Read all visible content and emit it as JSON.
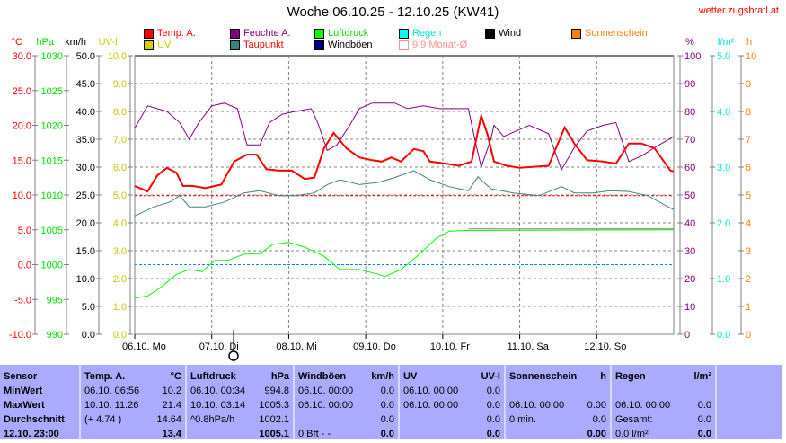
{
  "title": "Woche 06.10.25 - 12.10.25 (KW41)",
  "site": "wetter.zugsbratl.at",
  "legend": [
    {
      "label": "Temp. A.",
      "color": "#ff0000",
      "text_color": "#ff0000"
    },
    {
      "label": "Feuchte A.",
      "color": "#800080",
      "text_color": "#800080"
    },
    {
      "label": "Luftdruck",
      "color": "#00ff00",
      "text_color": "#00dd00"
    },
    {
      "label": "Regen",
      "color": "#00ffff",
      "text_color": "#00e0e0"
    },
    {
      "label": "Wind",
      "color": "#000000",
      "text_color": "#000000"
    },
    {
      "label": "Sonnenschein",
      "color": "#ff8000",
      "text_color": "#ff8000"
    },
    {
      "label": "UV",
      "color": "#d0d000",
      "text_color": "#c8c800"
    },
    {
      "label": "Taupunkt",
      "color": "#408080",
      "text_color": "#ff0000"
    },
    {
      "label": "Windböen",
      "color": "#000080",
      "text_color": "#000000"
    },
    {
      "label": "9.9 Monat-Ø",
      "color": "#ffffff",
      "text_color": "#ff9090"
    }
  ],
  "chart_data": {
    "type": "line",
    "title": "Woche 06.10.25 - 12.10.25 (KW41)",
    "x_unit": "hours since 06.10. 00:00",
    "xlim": [
      0,
      168
    ],
    "x_ticks": [
      "06.10. Mo",
      "07.10. Di",
      "08.10. Mi",
      "09.10. Do",
      "10.10. Fr",
      "11.10. Sa",
      "12.10. So"
    ],
    "axes": {
      "left": [
        {
          "label": "°C",
          "color": "#ff0000",
          "ticks": [
            "30.0",
            "25.0",
            "20.0",
            "15.0",
            "10.0",
            "5.0",
            "0.0",
            "-5.0",
            "-10.0"
          ]
        },
        {
          "label": "hPa",
          "color": "#00dd00",
          "ticks": [
            "1030",
            "1025",
            "1020",
            "1015",
            "1010",
            "1005",
            "1000",
            "995",
            "990"
          ]
        },
        {
          "label": "km/h",
          "color": "#000000",
          "ticks": [
            "50.0",
            "45.0",
            "40.0",
            "35.0",
            "30.0",
            "25.0",
            "20.0",
            "15.0",
            "10.0",
            "5.0",
            "0.0"
          ]
        },
        {
          "label": "UV-I",
          "color": "#c8c800",
          "ticks": [
            "10.0",
            "9.0",
            "8.0",
            "7.0",
            "6.0",
            "5.0",
            "4.0",
            "3.0",
            "2.0",
            "1.0",
            "0.0"
          ]
        }
      ],
      "right": [
        {
          "label": "%",
          "color": "#800080",
          "ticks": [
            "100",
            "90",
            "80",
            "70",
            "60",
            "50",
            "40",
            "30",
            "20",
            "10",
            "0"
          ]
        },
        {
          "label": "l/m²",
          "color": "#00e0e0",
          "ticks": [
            "5.0",
            "4.0",
            "3.0",
            "2.0",
            "1.0",
            "0.0"
          ]
        },
        {
          "label": "h",
          "color": "#ff8000",
          "ticks": [
            "10",
            "9",
            "8",
            "7",
            "6",
            "5",
            "4",
            "3",
            "2",
            "1",
            "0"
          ]
        }
      ]
    },
    "ylim_temp": [
      -10,
      30
    ],
    "ylim_hpa": [
      990,
      1030
    ],
    "ylim_pct": [
      0,
      100
    ],
    "series": [
      {
        "name": "Temp. A.",
        "axis": "temp",
        "color": "#ff0000",
        "width": 2,
        "points": [
          [
            0,
            11.3
          ],
          [
            4,
            10.5
          ],
          [
            7,
            12.8
          ],
          [
            10,
            13.9
          ],
          [
            13,
            13.2
          ],
          [
            15,
            11.3
          ],
          [
            18,
            11.3
          ],
          [
            22,
            11.0
          ],
          [
            27,
            11.5
          ],
          [
            31,
            14.8
          ],
          [
            35,
            15.8
          ],
          [
            38,
            15.8
          ],
          [
            41,
            13.7
          ],
          [
            45,
            13.5
          ],
          [
            49,
            13.5
          ],
          [
            53,
            12.3
          ],
          [
            56,
            12.5
          ],
          [
            59,
            16.7
          ],
          [
            62,
            18.9
          ],
          [
            66,
            16.7
          ],
          [
            70,
            15.4
          ],
          [
            74,
            15.0
          ],
          [
            77,
            14.8
          ],
          [
            80,
            15.4
          ],
          [
            83,
            14.8
          ],
          [
            87,
            16.6
          ],
          [
            90,
            16.3
          ],
          [
            92,
            14.8
          ],
          [
            97,
            14.5
          ],
          [
            101,
            14.2
          ],
          [
            105,
            14.8
          ],
          [
            108,
            21.4
          ],
          [
            110,
            18.6
          ],
          [
            112,
            14.8
          ],
          [
            116,
            14.2
          ],
          [
            120,
            13.9
          ],
          [
            129,
            14.2
          ],
          [
            134,
            19.7
          ],
          [
            137,
            17.4
          ],
          [
            141,
            15.0
          ],
          [
            146,
            14.8
          ],
          [
            150,
            14.5
          ],
          [
            154,
            17.4
          ],
          [
            158,
            17.4
          ],
          [
            162,
            16.7
          ],
          [
            167,
            13.5
          ],
          [
            168,
            13.4
          ]
        ]
      },
      {
        "name": "Feuchte A.",
        "axis": "pct",
        "color": "#800080",
        "width": 1,
        "points": [
          [
            0,
            74
          ],
          [
            4,
            82
          ],
          [
            7,
            81
          ],
          [
            10,
            80
          ],
          [
            14,
            76
          ],
          [
            17,
            70
          ],
          [
            20,
            76
          ],
          [
            24,
            82
          ],
          [
            28,
            83
          ],
          [
            32,
            81
          ],
          [
            35,
            68
          ],
          [
            39,
            68
          ],
          [
            42,
            76
          ],
          [
            46,
            79
          ],
          [
            50,
            80
          ],
          [
            55,
            81
          ],
          [
            57,
            76
          ],
          [
            60,
            66
          ],
          [
            63,
            68
          ],
          [
            67,
            75
          ],
          [
            70,
            81
          ],
          [
            74,
            83
          ],
          [
            81,
            83
          ],
          [
            85,
            81
          ],
          [
            90,
            82
          ],
          [
            95,
            81
          ],
          [
            104,
            81
          ],
          [
            106,
            70
          ],
          [
            108,
            60
          ],
          [
            111,
            70
          ],
          [
            112,
            75
          ],
          [
            115,
            71
          ],
          [
            119,
            73
          ],
          [
            123,
            75
          ],
          [
            129,
            72
          ],
          [
            133,
            59
          ],
          [
            137,
            67
          ],
          [
            141,
            73
          ],
          [
            146,
            75
          ],
          [
            150,
            76
          ],
          [
            154,
            62
          ],
          [
            158,
            64
          ],
          [
            162,
            67
          ],
          [
            168,
            71
          ]
        ]
      },
      {
        "name": "Taupunkt",
        "axis": "temp",
        "color": "#408080",
        "width": 1,
        "points": [
          [
            0,
            7.0
          ],
          [
            6,
            8.3
          ],
          [
            11,
            9.0
          ],
          [
            14,
            9.9
          ],
          [
            17,
            8.3
          ],
          [
            22,
            8.3
          ],
          [
            28,
            9.0
          ],
          [
            34,
            10.3
          ],
          [
            39,
            10.6
          ],
          [
            45,
            9.9
          ],
          [
            50,
            9.9
          ],
          [
            56,
            10.3
          ],
          [
            60,
            11.5
          ],
          [
            64,
            12.2
          ],
          [
            70,
            11.5
          ],
          [
            76,
            11.8
          ],
          [
            81,
            12.5
          ],
          [
            87,
            13.5
          ],
          [
            92,
            12.2
          ],
          [
            98,
            11.2
          ],
          [
            104,
            10.6
          ],
          [
            107,
            12.6
          ],
          [
            111,
            10.9
          ],
          [
            118,
            10.3
          ],
          [
            126,
            9.9
          ],
          [
            133,
            11.2
          ],
          [
            137,
            10.3
          ],
          [
            143,
            10.3
          ],
          [
            148,
            10.6
          ],
          [
            154,
            10.5
          ],
          [
            160,
            9.9
          ],
          [
            165,
            8.6
          ],
          [
            168,
            7.9
          ]
        ]
      },
      {
        "name": "Luftdruck",
        "axis": "hpa",
        "color": "#00ff00",
        "width": 1,
        "points": [
          [
            0,
            995.2
          ],
          [
            4,
            995.5
          ],
          [
            8,
            996.7
          ],
          [
            13,
            998.6
          ],
          [
            17,
            999.3
          ],
          [
            21,
            999.0
          ],
          [
            25,
            1000.6
          ],
          [
            29,
            1000.6
          ],
          [
            34,
            1001.5
          ],
          [
            39,
            1001.6
          ],
          [
            43,
            1002.9
          ],
          [
            48,
            1003.2
          ],
          [
            53,
            1002.5
          ],
          [
            59,
            1001.2
          ],
          [
            64,
            999.3
          ],
          [
            70,
            999.3
          ],
          [
            76,
            998.6
          ],
          [
            78,
            998.3
          ],
          [
            83,
            999.3
          ],
          [
            88,
            1001.2
          ],
          [
            94,
            1003.8
          ],
          [
            98,
            1004.8
          ],
          [
            104,
            1004.9
          ],
          [
            168,
            1005.0
          ]
        ]
      }
    ],
    "reference_lines": [
      {
        "name": "Monat-Ø Temp",
        "axis": "temp",
        "value": 9.9,
        "color": "#ff0000"
      },
      {
        "name": "Luftdruck ref",
        "axis": "hpa",
        "value": 1000,
        "color": "#0080ff"
      }
    ],
    "flat_line": {
      "name": "Luftdruck trend",
      "axis": "hpa",
      "value": 1005.0,
      "from": 104,
      "to": 168,
      "color": "#808080"
    }
  },
  "table": {
    "columns": [
      {
        "rows": [
          [
            "Sensor",
            ""
          ],
          [
            "MinWert",
            ""
          ],
          [
            "MaxWert",
            ""
          ],
          [
            "Durchschnitt",
            ""
          ],
          [
            "12.10. 23:00",
            ""
          ]
        ],
        "bold": true
      },
      {
        "rows": [
          [
            "Temp. A.",
            "°C"
          ],
          [
            "06.10.  06:56",
            "10.2"
          ],
          [
            "10.10.  11:26",
            "21.4"
          ],
          [
            "(+ 4.74 )",
            "14.64"
          ],
          [
            "",
            "13.4"
          ]
        ]
      },
      {
        "rows": [
          [
            "Luftdruck",
            "hPa"
          ],
          [
            "06.10.  00:34",
            "994.8"
          ],
          [
            "10.10.  03:14",
            "1005.3"
          ],
          [
            "^0.8hPa/h",
            "1002.1"
          ],
          [
            "",
            "1005.1"
          ]
        ]
      },
      {
        "rows": [
          [
            "Windböen",
            "km/h"
          ],
          [
            "06.10.  00:00",
            "0.0"
          ],
          [
            "06.10.  00:00",
            "0.0"
          ],
          [
            "",
            "0.0"
          ],
          [
            "0 Bft - -",
            "0.0"
          ]
        ]
      },
      {
        "rows": [
          [
            "UV",
            "UV-I"
          ],
          [
            "06.10.  00:00",
            "0.0"
          ],
          [
            "06.10.  00:00",
            "0.0"
          ],
          [
            "",
            "0.0"
          ],
          [
            "",
            "0.0"
          ]
        ]
      },
      {
        "rows": [
          [
            "Sonnenschein",
            "h"
          ],
          [
            "",
            ""
          ],
          [
            "06.10.  00:00",
            "0.00"
          ],
          [
            "0 min.",
            "0.0"
          ],
          [
            "",
            "0.00"
          ]
        ]
      },
      {
        "rows": [
          [
            "Regen",
            "l/m²"
          ],
          [
            "",
            ""
          ],
          [
            "06.10.  00:00",
            "0.0"
          ],
          [
            "Gesamt:",
            "0.0"
          ],
          [
            "0.0 l/m²",
            "0.0"
          ]
        ]
      }
    ]
  }
}
